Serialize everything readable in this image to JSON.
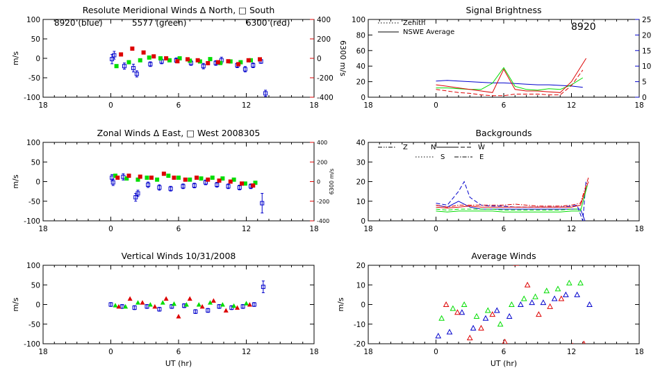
{
  "chart_data": [
    {
      "type": "scatter",
      "title": "Resolute Meridional Winds Δ North, □ South",
      "xlabel": "",
      "ylabel": "m/s",
      "ylabel_right": "6300 m/s",
      "xlim": [
        18,
        42
      ],
      "x_ticks": [
        "18",
        "0",
        "6",
        "12",
        "18"
      ],
      "ylim": [
        -100,
        100
      ],
      "y_ticks": [
        "100",
        "50",
        "0",
        "-50",
        "-100"
      ],
      "y2lim": [
        -400,
        400
      ],
      "y2_ticks": [
        "400",
        "200",
        "0",
        "-200",
        "-400"
      ],
      "annotations": [
        {
          "text": "8920 (blue)",
          "color": "#0000cc"
        },
        {
          "text": "5577 (green)",
          "color": "#00dd00"
        },
        {
          "text": "6300 (red)",
          "color": "#dd0000"
        }
      ],
      "series": [
        {
          "color": "#0000cc",
          "marker": "square-errorbar",
          "x": [
            0.1,
            0.3,
            1.2,
            2.0,
            2.3,
            3.5,
            4.5,
            5.8,
            7.1,
            8.2,
            9.3,
            9.8,
            11.2,
            11.9,
            12.6,
            13.3,
            13.7
          ],
          "y": [
            -2,
            8,
            -20,
            -25,
            -40,
            -15,
            -8,
            -5,
            -12,
            -20,
            -12,
            -5,
            -18,
            -28,
            -18,
            -8,
            -90
          ],
          "err": [
            12,
            10,
            8,
            10,
            8,
            6,
            6,
            6,
            6,
            7,
            6,
            8,
            6,
            7,
            6,
            5,
            8
          ]
        },
        {
          "color": "#00dd00",
          "marker": "filled-square",
          "x": [
            0.5,
            1.6,
            2.6,
            3.4,
            4.4,
            5.2,
            6.1,
            7.0,
            7.9,
            8.8,
            9.7,
            10.6,
            11.5,
            12.4
          ],
          "y": [
            -20,
            -10,
            -5,
            2,
            0,
            -5,
            0,
            -6,
            -8,
            -2,
            -12,
            -8,
            -10,
            -5
          ]
        },
        {
          "color": "#dd0000",
          "marker": "filled-square",
          "y_axis": "right",
          "x": [
            0.9,
            1.9,
            2.9,
            3.8,
            4.9,
            5.9,
            6.8,
            7.7,
            8.6,
            9.5,
            10.4,
            11.3,
            12.2,
            13.2
          ],
          "y": [
            40,
            100,
            60,
            20,
            0,
            -30,
            -10,
            -20,
            -50,
            -40,
            -30,
            -60,
            -20,
            -10
          ]
        }
      ]
    },
    {
      "type": "line",
      "title": "Signal Brightness",
      "xlim": [
        18,
        42
      ],
      "x_ticks": [
        "18",
        "0",
        "6",
        "12",
        "18"
      ],
      "ylim": [
        0,
        100
      ],
      "y_ticks": [
        "100",
        "80",
        "60",
        "40",
        "20",
        "0"
      ],
      "y2lim": [
        0,
        25
      ],
      "y2_ticks": [
        "25",
        "20",
        "15",
        "10",
        "5",
        "0"
      ],
      "annotations": [
        {
          "text": "8920",
          "color": "#0000cc"
        }
      ],
      "legend": {
        "position": "top-left",
        "entries": [
          {
            "label": "Zenith",
            "style": "dotted"
          },
          {
            "label": "NSWE Average",
            "style": "solid"
          }
        ]
      },
      "series": [
        {
          "color": "#0000cc",
          "style": "solid",
          "y_axis": "right",
          "x": [
            0,
            1,
            2,
            3,
            4,
            5,
            6,
            7,
            8,
            9,
            10,
            11,
            12,
            13
          ],
          "y": [
            5.2,
            5.4,
            5.2,
            5.0,
            4.8,
            4.6,
            4.6,
            4.4,
            4.2,
            4.0,
            4.0,
            3.8,
            3.6,
            3.2
          ]
        },
        {
          "color": "#00dd00",
          "style": "solid",
          "x": [
            0,
            1,
            2,
            3,
            4,
            5,
            6,
            7,
            8,
            9,
            10,
            11,
            12,
            13
          ],
          "y": [
            12,
            12,
            11,
            10,
            10,
            18,
            38,
            14,
            10,
            9,
            11,
            10,
            16,
            25
          ]
        },
        {
          "color": "#dd0000",
          "style": "solid",
          "x": [
            0,
            1,
            2,
            3,
            4,
            5,
            6,
            7,
            8,
            9,
            10,
            11,
            12,
            13.3
          ],
          "y": [
            16,
            14,
            12,
            10,
            8,
            6,
            36,
            10,
            8,
            8,
            7,
            6,
            20,
            50
          ]
        },
        {
          "color": "#dd0000",
          "style": "dashed",
          "x": [
            0,
            1,
            2,
            3,
            4,
            5,
            6,
            7,
            8,
            9,
            10,
            11,
            12,
            13
          ],
          "y": [
            10,
            8,
            6,
            5,
            3,
            2,
            2,
            4,
            4,
            4,
            3,
            3,
            15,
            35
          ]
        }
      ]
    },
    {
      "type": "scatter",
      "title": "Zonal Winds Δ East, □ West 2008305",
      "ylabel": "m/s",
      "ylabel_right": "6300 m/s",
      "xlim": [
        18,
        42
      ],
      "x_ticks": [
        "18",
        "0",
        "6",
        "12",
        "18"
      ],
      "ylim": [
        -100,
        100
      ],
      "y_ticks": [
        "100",
        "50",
        "0",
        "-50",
        "-100"
      ],
      "y2lim": [
        -400,
        400
      ],
      "y2_ticks": [
        "400",
        "200",
        "0",
        "-200",
        "-400"
      ],
      "series": [
        {
          "color": "#0000cc",
          "marker": "square-errorbar",
          "x": [
            0.1,
            0.2,
            1.1,
            2.2,
            2.4,
            3.3,
            4.3,
            5.3,
            6.4,
            7.4,
            8.4,
            9.4,
            10.4,
            11.4,
            12.4,
            13.4
          ],
          "y": [
            10,
            -2,
            12,
            -40,
            -30,
            -8,
            -15,
            -18,
            -12,
            -10,
            -2,
            -8,
            -12,
            -15,
            -12,
            -55
          ],
          "err": [
            8,
            8,
            8,
            10,
            8,
            7,
            7,
            6,
            6,
            6,
            6,
            6,
            6,
            6,
            6,
            25
          ]
        },
        {
          "color": "#00dd00",
          "marker": "filled-square",
          "x": [
            0.4,
            1.4,
            2.4,
            3.2,
            4.1,
            5.1,
            6.0,
            7.0,
            8.0,
            9.0,
            9.9,
            10.9,
            11.9,
            12.8
          ],
          "y": [
            15,
            8,
            5,
            10,
            5,
            15,
            10,
            5,
            8,
            10,
            8,
            5,
            -5,
            -3
          ]
        },
        {
          "color": "#dd0000",
          "marker": "filled-square",
          "y_axis": "right",
          "x": [
            0.6,
            1.6,
            2.6,
            3.6,
            4.7,
            5.6,
            6.6,
            7.6,
            8.6,
            9.6,
            10.6,
            11.6,
            12.6
          ],
          "y": [
            40,
            60,
            50,
            40,
            80,
            40,
            20,
            40,
            20,
            10,
            0,
            -20,
            -40
          ]
        }
      ]
    },
    {
      "type": "line",
      "title": "Backgrounds",
      "xlim": [
        18,
        42
      ],
      "x_ticks": [
        "18",
        "0",
        "6",
        "12",
        "18"
      ],
      "ylim": [
        0,
        40
      ],
      "y_ticks": [
        "40",
        "30",
        "20",
        "10",
        "0"
      ],
      "legend": {
        "position": "top-left",
        "entries": [
          {
            "label": "Z",
            "style": "dash-dot-dot"
          },
          {
            "label": "N",
            "style": "solid"
          },
          {
            "label": "W",
            "style": "dashed"
          },
          {
            "label": "S",
            "style": "dotted"
          },
          {
            "label": "E",
            "style": "dash-dot"
          }
        ]
      },
      "series": [
        {
          "color": "#0000cc",
          "style": "dashed",
          "x": [
            0,
            1,
            2,
            2.5,
            3,
            4,
            5,
            6,
            7,
            8,
            9,
            10,
            11,
            12,
            12.5,
            13.0,
            13.3
          ],
          "y": [
            9,
            8,
            15,
            20,
            12,
            8,
            7.5,
            7.5,
            7,
            7,
            7,
            7,
            7,
            7.5,
            8,
            0,
            21
          ]
        },
        {
          "color": "#0000cc",
          "style": "solid",
          "x": [
            0,
            1,
            2,
            3,
            4,
            5,
            6,
            7,
            8,
            9,
            10,
            11,
            12,
            12.8,
            13.2
          ],
          "y": [
            8,
            7,
            10,
            7,
            6,
            6,
            6,
            6,
            6,
            6,
            6,
            6,
            6,
            6,
            0
          ]
        },
        {
          "color": "#dd0000",
          "style": "dash-dot",
          "x": [
            0,
            1,
            2,
            3,
            4,
            5,
            6,
            7,
            8,
            9,
            10,
            11,
            12,
            12.8,
            13.5
          ],
          "y": [
            8,
            7,
            8,
            8,
            8,
            8,
            8,
            8.5,
            8,
            7.5,
            7.5,
            7.5,
            8,
            9,
            22
          ]
        },
        {
          "color": "#dd0000",
          "style": "solid",
          "x": [
            0,
            1,
            2,
            3,
            4,
            5,
            6,
            7,
            8,
            9,
            10,
            11,
            12,
            12.8,
            13.5
          ],
          "y": [
            7,
            6.5,
            7,
            7.5,
            7,
            7,
            7,
            7,
            7,
            7,
            7,
            7,
            7,
            8,
            20
          ]
        },
        {
          "color": "#00dd00",
          "style": "solid",
          "x": [
            0,
            1,
            2,
            3,
            4,
            5,
            6,
            7,
            8,
            9,
            10,
            11,
            12,
            12.8,
            13.4
          ],
          "y": [
            5,
            4.5,
            5,
            5,
            5,
            5,
            4.5,
            4.5,
            4.5,
            4.5,
            4.5,
            4.5,
            5,
            5,
            18
          ]
        },
        {
          "color": "#00dd00",
          "style": "dashed",
          "x": [
            0,
            1,
            2,
            3,
            4,
            5,
            6,
            7,
            8,
            9,
            10,
            11,
            12,
            12.8
          ],
          "y": [
            6,
            5.5,
            6,
            6,
            6,
            6,
            5.5,
            5.5,
            5.5,
            5.5,
            5.5,
            5.5,
            6,
            6
          ]
        }
      ]
    },
    {
      "type": "scatter",
      "title": "Vertical Winds 10/31/2008",
      "xlabel": "UT (hr)",
      "ylabel": "m/s",
      "xlim": [
        18,
        42
      ],
      "x_ticks": [
        "18",
        "0",
        "6",
        "12",
        "18"
      ],
      "ylim": [
        -100,
        100
      ],
      "y_ticks": [
        "100",
        "50",
        "0",
        "-50",
        "-100"
      ],
      "series": [
        {
          "color": "#0000cc",
          "marker": "square-errorbar",
          "x": [
            0.0,
            1.0,
            2.1,
            3.2,
            4.3,
            5.4,
            6.5,
            7.5,
            8.6,
            9.6,
            10.7,
            11.7,
            12.7,
            13.5
          ],
          "y": [
            0,
            -5,
            -8,
            -5,
            -12,
            -5,
            -3,
            -18,
            -15,
            -5,
            -8,
            -5,
            0,
            45
          ],
          "err": [
            5,
            5,
            5,
            5,
            5,
            5,
            5,
            5,
            5,
            5,
            5,
            5,
            5,
            15
          ]
        },
        {
          "color": "#00dd00",
          "marker": "filled-triangle",
          "x": [
            0.4,
            1.3,
            2.4,
            3.5,
            4.6,
            5.6,
            6.7,
            7.8,
            8.8,
            9.9,
            10.9,
            12.0
          ],
          "y": [
            -2,
            -5,
            5,
            0,
            5,
            2,
            0,
            0,
            5,
            0,
            -3,
            3
          ]
        },
        {
          "color": "#dd0000",
          "marker": "filled-triangle",
          "x": [
            0.7,
            1.7,
            2.8,
            3.9,
            4.9,
            6.0,
            7.0,
            8.1,
            9.1,
            10.2,
            11.2,
            12.3
          ],
          "y": [
            -5,
            15,
            5,
            -5,
            15,
            -30,
            15,
            -5,
            10,
            -15,
            -8,
            0
          ]
        }
      ]
    },
    {
      "type": "scatter",
      "title": "Average Winds",
      "xlabel": "UT (hr)",
      "ylabel": "m/s",
      "xlim": [
        18,
        42
      ],
      "x_ticks": [
        "18",
        "0",
        "6",
        "12",
        "18"
      ],
      "ylim": [
        -20,
        20
      ],
      "y_ticks": [
        "20",
        "10",
        "0",
        "-10",
        "-20"
      ],
      "series": [
        {
          "color": "#0000cc",
          "marker": "open-triangle",
          "x": [
            0.2,
            1.2,
            2.3,
            3.3,
            4.4,
            5.4,
            6.5,
            7.5,
            8.5,
            9.5,
            10.5,
            11.5,
            12.5,
            13.6
          ],
          "y": [
            -16,
            -14,
            -4,
            -12,
            -7,
            -3,
            -6,
            0,
            1,
            1,
            3,
            5,
            5,
            0
          ]
        },
        {
          "color": "#00dd00",
          "marker": "open-triangle",
          "x": [
            0.5,
            1.5,
            2.5,
            3.6,
            4.6,
            5.7,
            6.7,
            7.8,
            8.8,
            9.8,
            10.8,
            11.8,
            12.8
          ],
          "y": [
            -7,
            -2,
            0,
            -6,
            -3,
            -10,
            0,
            3,
            4,
            7,
            8,
            11,
            11
          ]
        },
        {
          "color": "#dd0000",
          "marker": "open-triangle",
          "x": [
            0.9,
            1.9,
            3.0,
            4.0,
            5.0,
            6.1,
            7.1,
            8.1,
            9.1,
            10.1,
            11.1,
            12.1,
            13.1
          ],
          "y": [
            0,
            -4,
            -17,
            -12,
            -5,
            -19,
            21,
            10,
            -5,
            -1,
            3,
            -21,
            -20
          ]
        }
      ]
    }
  ]
}
